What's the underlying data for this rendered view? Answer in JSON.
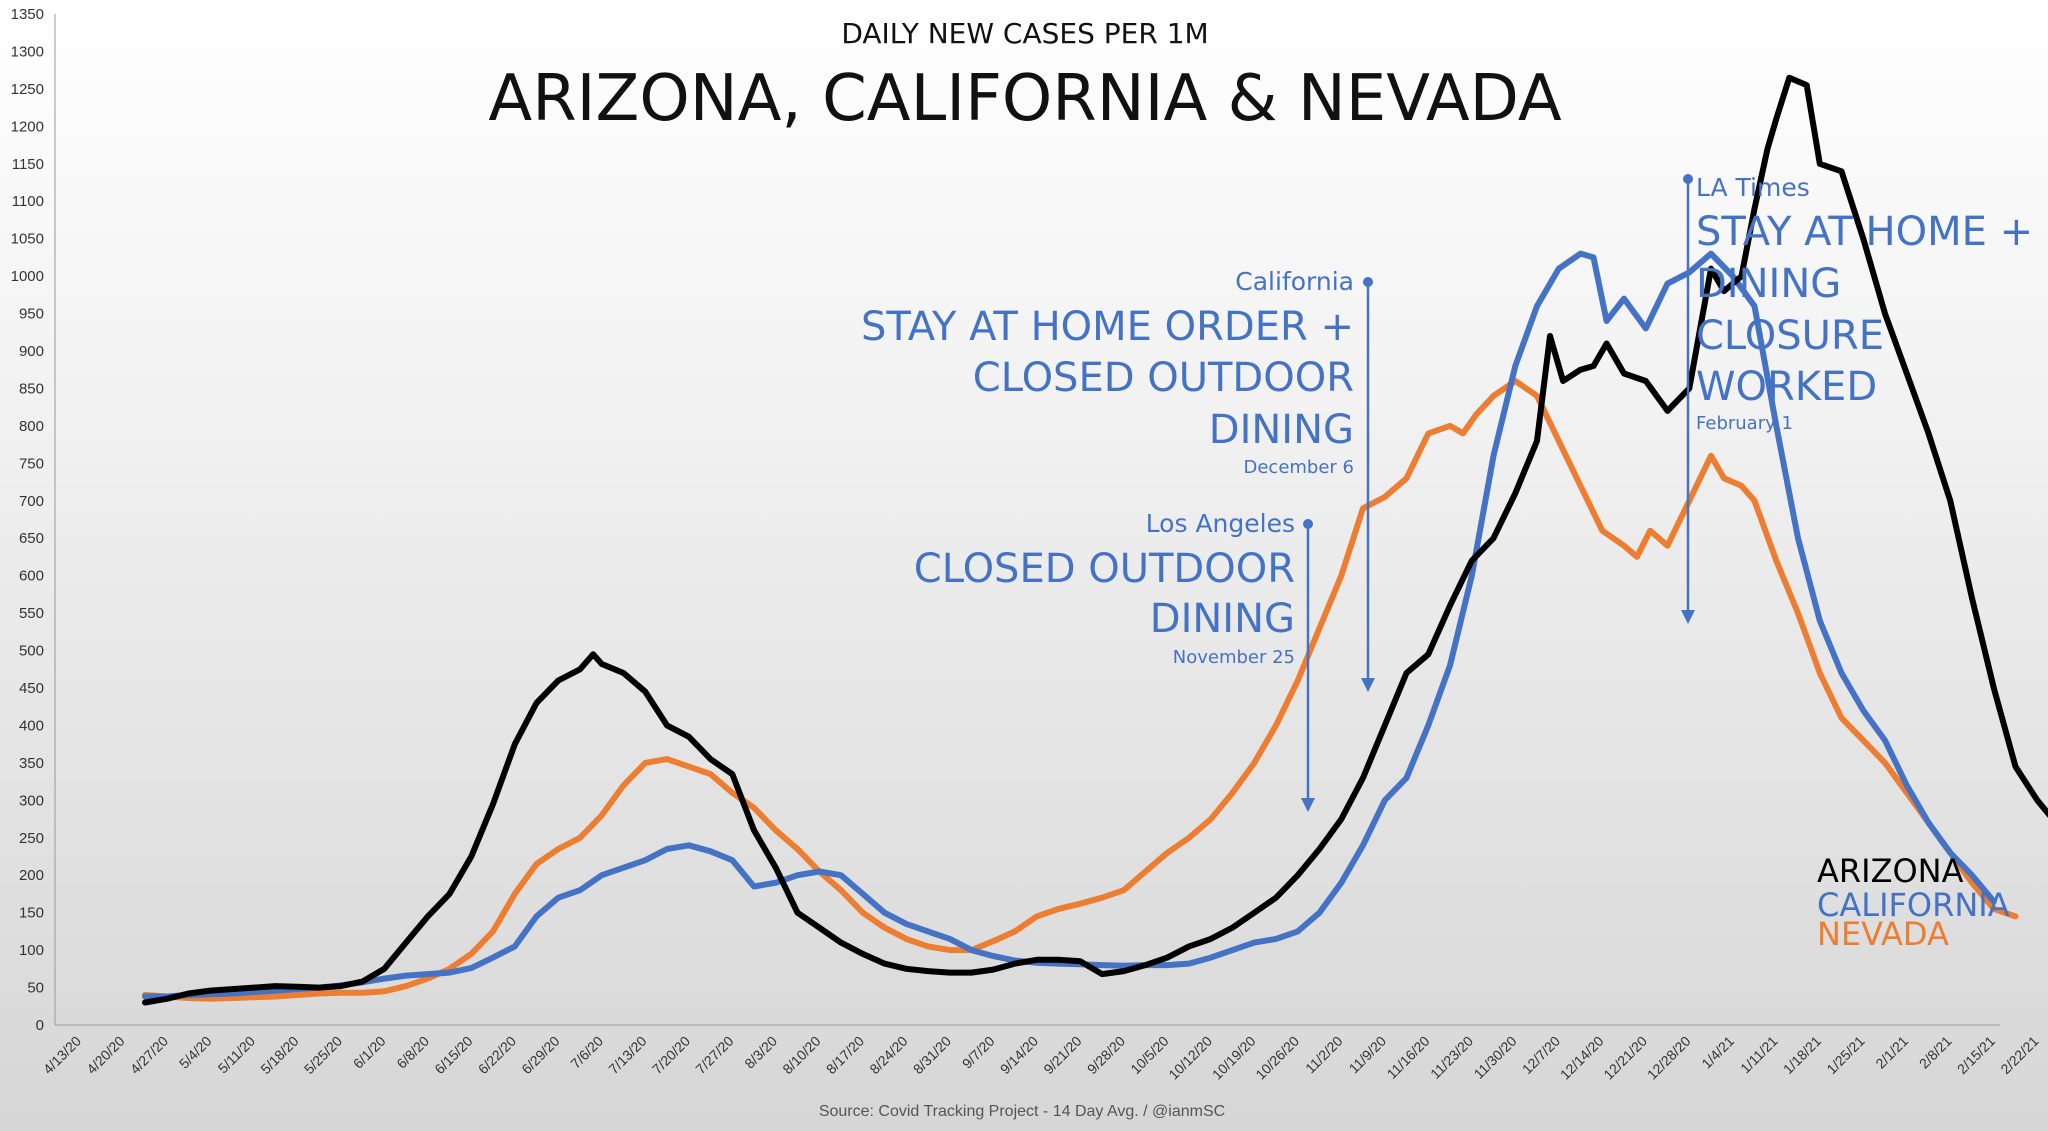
{
  "header": {
    "subtitle": "DAILY NEW CASES PER 1M",
    "title": "ARIZONA, CALIFORNIA & NEVADA"
  },
  "footer": {
    "source": "Source: Covid Tracking Project - 14 Day Avg.  / @ianmSC"
  },
  "colors": {
    "arizona": "#000000",
    "california": "#4472C4",
    "nevada": "#ED7D31",
    "annotation": "#4472C4"
  },
  "annotations": {
    "california": {
      "source": "California",
      "lines": [
        "STAY AT HOME ORDER +",
        "CLOSED OUTDOOR",
        "DINING"
      ],
      "date": "December 6"
    },
    "los_angeles": {
      "source": "Los Angeles",
      "lines": [
        "CLOSED OUTDOOR",
        "DINING"
      ],
      "date": "November 25"
    },
    "la_times": {
      "source": "LA Times",
      "lines": [
        "STAY AT HOME +",
        "DINING",
        "CLOSURE",
        "WORKED"
      ],
      "date": "February 1"
    }
  },
  "chart_data": {
    "type": "line",
    "title": "ARIZONA, CALIFORNIA & NEVADA",
    "subtitle": "DAILY NEW CASES PER 1M",
    "ylim": [
      0,
      1350
    ],
    "yticks": [
      0,
      50,
      100,
      150,
      200,
      250,
      300,
      350,
      400,
      450,
      500,
      550,
      600,
      650,
      700,
      750,
      800,
      850,
      900,
      950,
      1000,
      1050,
      1100,
      1150,
      1200,
      1250,
      1300,
      1350
    ],
    "categories": [
      "4/13/20",
      "4/20/20",
      "4/27/20",
      "5/4/20",
      "5/11/20",
      "5/18/20",
      "5/25/20",
      "6/1/20",
      "6/8/20",
      "6/15/20",
      "6/22/20",
      "6/29/20",
      "7/6/20",
      "7/13/20",
      "7/20/20",
      "7/27/20",
      "8/3/20",
      "8/10/20",
      "8/17/20",
      "8/24/20",
      "8/31/20",
      "9/7/20",
      "9/14/20",
      "9/21/20",
      "9/28/20",
      "10/5/20",
      "10/12/20",
      "10/19/20",
      "10/26/20",
      "11/2/20",
      "11/9/20",
      "11/16/20",
      "11/23/20",
      "11/30/20",
      "12/7/20",
      "12/14/20",
      "12/21/20",
      "12/28/20",
      "1/4/21",
      "1/11/21",
      "1/18/21",
      "1/25/21",
      "2/1/21",
      "2/8/21",
      "2/15/21",
      "2/22/21"
    ],
    "grid": false,
    "series": [
      {
        "name": "ARIZONA",
        "color": "#000000",
        "points": [
          [
            2,
            30
          ],
          [
            2.5,
            35
          ],
          [
            3,
            42
          ],
          [
            3.5,
            46
          ],
          [
            4,
            48
          ],
          [
            4.5,
            50
          ],
          [
            5,
            52
          ],
          [
            5.5,
            51
          ],
          [
            6,
            50
          ],
          [
            6.5,
            52
          ],
          [
            7,
            58
          ],
          [
            7.5,
            75
          ],
          [
            8,
            110
          ],
          [
            8.5,
            145
          ],
          [
            9,
            175
          ],
          [
            9.5,
            225
          ],
          [
            10,
            295
          ],
          [
            10.5,
            375
          ],
          [
            11,
            430
          ],
          [
            11.5,
            460
          ],
          [
            12,
            475
          ],
          [
            12.3,
            495
          ],
          [
            12.5,
            482
          ],
          [
            13,
            470
          ],
          [
            13.5,
            445
          ],
          [
            14,
            400
          ],
          [
            14.5,
            385
          ],
          [
            15,
            355
          ],
          [
            15.5,
            335
          ],
          [
            16,
            260
          ],
          [
            16.5,
            210
          ],
          [
            17,
            150
          ],
          [
            17.5,
            130
          ],
          [
            18,
            110
          ],
          [
            18.5,
            95
          ],
          [
            19,
            82
          ],
          [
            19.5,
            75
          ],
          [
            20,
            72
          ],
          [
            20.5,
            70
          ],
          [
            21,
            70
          ],
          [
            21.5,
            74
          ],
          [
            22,
            82
          ],
          [
            22.5,
            87
          ],
          [
            23,
            87
          ],
          [
            23.5,
            85
          ],
          [
            24,
            68
          ],
          [
            24.5,
            72
          ],
          [
            25,
            80
          ],
          [
            25.5,
            90
          ],
          [
            26,
            105
          ],
          [
            26.5,
            115
          ],
          [
            27,
            130
          ],
          [
            27.5,
            150
          ],
          [
            28,
            170
          ],
          [
            28.5,
            200
          ],
          [
            29,
            235
          ],
          [
            29.5,
            275
          ],
          [
            30,
            330
          ],
          [
            30.5,
            400
          ],
          [
            31,
            470
          ],
          [
            31.5,
            495
          ],
          [
            32,
            560
          ],
          [
            32.5,
            620
          ],
          [
            33,
            650
          ],
          [
            33.5,
            710
          ],
          [
            34,
            780
          ],
          [
            34.3,
            920
          ],
          [
            34.6,
            860
          ],
          [
            35,
            875
          ],
          [
            35.3,
            880
          ],
          [
            35.6,
            910
          ],
          [
            36,
            870
          ],
          [
            36.5,
            860
          ],
          [
            37,
            820
          ],
          [
            37.5,
            850
          ],
          [
            38,
            1010
          ],
          [
            38.3,
            980
          ],
          [
            38.7,
            1000
          ],
          [
            39,
            1090
          ],
          [
            39.3,
            1170
          ],
          [
            39.5,
            1210
          ],
          [
            39.8,
            1265
          ],
          [
            40.2,
            1255
          ],
          [
            40.5,
            1150
          ],
          [
            41,
            1140
          ],
          [
            41.5,
            1050
          ],
          [
            42,
            950
          ],
          [
            42.5,
            870
          ],
          [
            43,
            790
          ],
          [
            43.5,
            700
          ],
          [
            44,
            570
          ],
          [
            44.5,
            450
          ],
          [
            45,
            345
          ],
          [
            45.5,
            300
          ],
          [
            46,
            265
          ],
          [
            46.5,
            230
          ],
          [
            47,
            210
          ]
        ]
      },
      {
        "name": "CALIFORNIA",
        "color": "#4472C4",
        "points": [
          [
            2,
            38
          ],
          [
            2.5,
            38
          ],
          [
            3,
            40
          ],
          [
            3.5,
            41
          ],
          [
            4,
            42
          ],
          [
            4.5,
            44
          ],
          [
            5,
            46
          ],
          [
            5.5,
            48
          ],
          [
            6,
            50
          ],
          [
            6.5,
            53
          ],
          [
            7,
            57
          ],
          [
            7.5,
            62
          ],
          [
            8,
            66
          ],
          [
            8.5,
            68
          ],
          [
            9,
            70
          ],
          [
            9.5,
            76
          ],
          [
            10,
            90
          ],
          [
            10.5,
            105
          ],
          [
            11,
            145
          ],
          [
            11.5,
            170
          ],
          [
            12,
            180
          ],
          [
            12.5,
            200
          ],
          [
            13,
            210
          ],
          [
            13.5,
            220
          ],
          [
            14,
            235
          ],
          [
            14.5,
            240
          ],
          [
            15,
            232
          ],
          [
            15.5,
            220
          ],
          [
            16,
            185
          ],
          [
            16.5,
            190
          ],
          [
            17,
            200
          ],
          [
            17.5,
            205
          ],
          [
            18,
            200
          ],
          [
            18.5,
            175
          ],
          [
            19,
            150
          ],
          [
            19.5,
            135
          ],
          [
            20,
            125
          ],
          [
            20.5,
            115
          ],
          [
            21,
            100
          ],
          [
            21.5,
            92
          ],
          [
            22,
            86
          ],
          [
            22.5,
            83
          ],
          [
            23,
            82
          ],
          [
            23.5,
            81
          ],
          [
            24,
            80
          ],
          [
            24.5,
            79
          ],
          [
            25,
            80
          ],
          [
            25.5,
            80
          ],
          [
            26,
            82
          ],
          [
            26.5,
            90
          ],
          [
            27,
            100
          ],
          [
            27.5,
            110
          ],
          [
            28,
            115
          ],
          [
            28.5,
            125
          ],
          [
            29,
            150
          ],
          [
            29.5,
            190
          ],
          [
            30,
            240
          ],
          [
            30.5,
            300
          ],
          [
            31,
            330
          ],
          [
            31.5,
            400
          ],
          [
            32,
            480
          ],
          [
            32.5,
            600
          ],
          [
            33,
            760
          ],
          [
            33.5,
            880
          ],
          [
            34,
            960
          ],
          [
            34.5,
            1010
          ],
          [
            35,
            1030
          ],
          [
            35.3,
            1025
          ],
          [
            35.6,
            940
          ],
          [
            36,
            970
          ],
          [
            36.5,
            930
          ],
          [
            37,
            990
          ],
          [
            37.5,
            1005
          ],
          [
            38,
            1030
          ],
          [
            38.5,
            1000
          ],
          [
            39,
            960
          ],
          [
            39.5,
            800
          ],
          [
            40,
            650
          ],
          [
            40.5,
            540
          ],
          [
            41,
            470
          ],
          [
            41.5,
            420
          ],
          [
            42,
            380
          ],
          [
            42.5,
            320
          ],
          [
            43,
            270
          ],
          [
            43.5,
            230
          ],
          [
            44,
            200
          ],
          [
            44.5,
            165
          ]
        ]
      },
      {
        "name": "NEVADA",
        "color": "#ED7D31",
        "points": [
          [
            2,
            40
          ],
          [
            2.5,
            38
          ],
          [
            3,
            36
          ],
          [
            3.5,
            35
          ],
          [
            4,
            36
          ],
          [
            4.5,
            37
          ],
          [
            5,
            38
          ],
          [
            5.5,
            40
          ],
          [
            6,
            42
          ],
          [
            6.5,
            43
          ],
          [
            7,
            43
          ],
          [
            7.5,
            45
          ],
          [
            8,
            52
          ],
          [
            8.5,
            62
          ],
          [
            9,
            75
          ],
          [
            9.5,
            95
          ],
          [
            10,
            125
          ],
          [
            10.5,
            175
          ],
          [
            11,
            215
          ],
          [
            11.5,
            235
          ],
          [
            12,
            250
          ],
          [
            12.5,
            280
          ],
          [
            13,
            320
          ],
          [
            13.5,
            350
          ],
          [
            14,
            355
          ],
          [
            14.5,
            345
          ],
          [
            15,
            335
          ],
          [
            15.5,
            310
          ],
          [
            16,
            290
          ],
          [
            16.5,
            260
          ],
          [
            17,
            235
          ],
          [
            17.5,
            205
          ],
          [
            18,
            180
          ],
          [
            18.5,
            150
          ],
          [
            19,
            130
          ],
          [
            19.5,
            115
          ],
          [
            20,
            105
          ],
          [
            20.5,
            100
          ],
          [
            21,
            100
          ],
          [
            21.5,
            112
          ],
          [
            22,
            125
          ],
          [
            22.5,
            145
          ],
          [
            23,
            155
          ],
          [
            23.5,
            162
          ],
          [
            24,
            170
          ],
          [
            24.5,
            180
          ],
          [
            25,
            205
          ],
          [
            25.5,
            230
          ],
          [
            26,
            250
          ],
          [
            26.5,
            275
          ],
          [
            27,
            310
          ],
          [
            27.5,
            350
          ],
          [
            28,
            400
          ],
          [
            28.5,
            460
          ],
          [
            29,
            530
          ],
          [
            29.5,
            600
          ],
          [
            30,
            690
          ],
          [
            30.5,
            705
          ],
          [
            31,
            730
          ],
          [
            31.5,
            790
          ],
          [
            32,
            800
          ],
          [
            32.3,
            790
          ],
          [
            32.6,
            815
          ],
          [
            33,
            840
          ],
          [
            33.5,
            860
          ],
          [
            34,
            840
          ],
          [
            34.5,
            780
          ],
          [
            35,
            720
          ],
          [
            35.5,
            660
          ],
          [
            36,
            640
          ],
          [
            36.3,
            625
          ],
          [
            36.6,
            660
          ],
          [
            37,
            640
          ],
          [
            37.5,
            700
          ],
          [
            38,
            760
          ],
          [
            38.3,
            730
          ],
          [
            38.7,
            720
          ],
          [
            39,
            700
          ],
          [
            39.5,
            620
          ],
          [
            40,
            550
          ],
          [
            40.5,
            470
          ],
          [
            41,
            410
          ],
          [
            41.5,
            380
          ],
          [
            42,
            350
          ],
          [
            42.5,
            310
          ],
          [
            43,
            270
          ],
          [
            43.5,
            230
          ],
          [
            44,
            190
          ],
          [
            44.5,
            155
          ],
          [
            45,
            145
          ]
        ]
      }
    ]
  }
}
